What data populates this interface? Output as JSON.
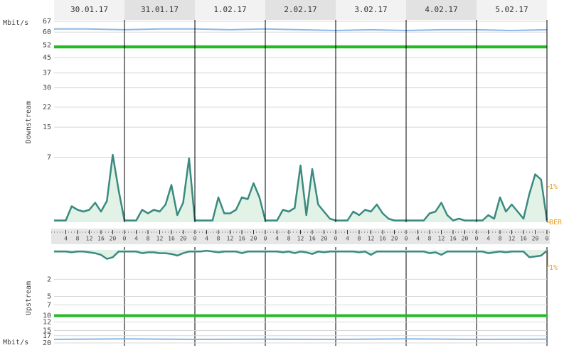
{
  "chart_data": [
    {
      "type": "line",
      "ylabel": "Downstream",
      "yunit": "Mbit/s",
      "days": [
        "30.01.17",
        "31.01.17",
        "1.02.17",
        "2.02.17",
        "3.02.17",
        "4.02.17",
        "5.02.17"
      ],
      "xlim": [
        0,
        168
      ],
      "xticks": [
        {
          "value": 4,
          "label": "4"
        },
        {
          "value": 8,
          "label": "8"
        },
        {
          "value": 12,
          "label": "12"
        },
        {
          "value": 16,
          "label": "16"
        },
        {
          "value": 20,
          "label": "20"
        },
        {
          "value": 24,
          "label": "0"
        },
        {
          "value": 28,
          "label": "4"
        },
        {
          "value": 32,
          "label": "8"
        },
        {
          "value": 36,
          "label": "12"
        },
        {
          "value": 40,
          "label": "16"
        },
        {
          "value": 44,
          "label": "20"
        },
        {
          "value": 48,
          "label": "0"
        },
        {
          "value": 52,
          "label": "4"
        },
        {
          "value": 56,
          "label": "8"
        },
        {
          "value": 60,
          "label": "12"
        },
        {
          "value": 64,
          "label": "16"
        },
        {
          "value": 68,
          "label": "20"
        },
        {
          "value": 72,
          "label": "0"
        },
        {
          "value": 76,
          "label": "4"
        },
        {
          "value": 80,
          "label": "8"
        },
        {
          "value": 84,
          "label": "12"
        },
        {
          "value": 88,
          "label": "16"
        },
        {
          "value": 92,
          "label": "20"
        },
        {
          "value": 96,
          "label": "0"
        },
        {
          "value": 100,
          "label": "4"
        },
        {
          "value": 104,
          "label": "8"
        },
        {
          "value": 108,
          "label": "12"
        },
        {
          "value": 112,
          "label": "16"
        },
        {
          "value": 116,
          "label": "20"
        },
        {
          "value": 120,
          "label": "0"
        },
        {
          "value": 124,
          "label": "4"
        },
        {
          "value": 128,
          "label": "8"
        },
        {
          "value": 132,
          "label": "12"
        },
        {
          "value": 136,
          "label": "16"
        },
        {
          "value": 140,
          "label": "20"
        },
        {
          "value": 144,
          "label": "0"
        },
        {
          "value": 148,
          "label": "4"
        },
        {
          "value": 152,
          "label": "8"
        },
        {
          "value": 156,
          "label": "12"
        },
        {
          "value": 160,
          "label": "16"
        },
        {
          "value": 164,
          "label": "20"
        },
        {
          "value": 168,
          "label": "0"
        }
      ],
      "ylim": [
        0,
        67
      ],
      "yticks": [
        67,
        60,
        52,
        45,
        37,
        30,
        22,
        15,
        7
      ],
      "yscale": "sqrt",
      "inverted": false,
      "grid": true,
      "y2lim": [
        0,
        5.66
      ],
      "y2ticks": [
        {
          "value": 0,
          "label": "BER"
        },
        {
          "value": 1,
          "label": "1%"
        }
      ],
      "series": [
        {
          "color": "#8ab8e8",
          "x": [
            0,
            12,
            24,
            36,
            48,
            60,
            72,
            84,
            96,
            108,
            120,
            132,
            144,
            156,
            168
          ],
          "values": [
            62,
            62,
            61.5,
            62,
            62,
            61.5,
            62,
            61.5,
            61,
            61.5,
            61,
            61.5,
            61.5,
            61,
            61.5
          ]
        },
        {
          "color": "#22bb22",
          "x": [
            0,
            168
          ],
          "values": [
            51,
            51
          ]
        },
        {
          "color": "#3a8a80",
          "fill": "#e2f2e6",
          "axis": "y2",
          "x": [
            0,
            2,
            4,
            6,
            8,
            10,
            12,
            14,
            16,
            18,
            20,
            22,
            24,
            26,
            28,
            30,
            32,
            34,
            36,
            38,
            40,
            42,
            44,
            46,
            48,
            50,
            52,
            54,
            56,
            58,
            60,
            62,
            64,
            66,
            68,
            70,
            72,
            74,
            76,
            78,
            80,
            82,
            84,
            86,
            88,
            90,
            92,
            94,
            96,
            98,
            100,
            102,
            104,
            106,
            108,
            110,
            112,
            114,
            116,
            118,
            120,
            122,
            124,
            126,
            128,
            130,
            132,
            134,
            136,
            138,
            140,
            142,
            144,
            146,
            148,
            150,
            152,
            154,
            156,
            158,
            160,
            162,
            164,
            166,
            168
          ],
          "values": [
            0.05,
            0.05,
            0.05,
            0.45,
            0.35,
            0.3,
            0.35,
            0.55,
            0.3,
            0.6,
            1.9,
            0.9,
            0.05,
            0.05,
            0.05,
            0.35,
            0.25,
            0.35,
            0.3,
            0.5,
            1.05,
            0.2,
            0.55,
            1.8,
            0.05,
            0.05,
            0.05,
            0.05,
            0.7,
            0.25,
            0.25,
            0.35,
            0.7,
            0.65,
            1.1,
            0.7,
            0.05,
            0.05,
            0.05,
            0.35,
            0.3,
            0.4,
            1.6,
            0.2,
            1.5,
            0.5,
            0.3,
            0.1,
            0.05,
            0.05,
            0.05,
            0.3,
            0.2,
            0.35,
            0.3,
            0.5,
            0.25,
            0.1,
            0.05,
            0.05,
            0.05,
            0.05,
            0.05,
            0.05,
            0.25,
            0.3,
            0.55,
            0.2,
            0.05,
            0.1,
            0.05,
            0.05,
            0.05,
            0.05,
            0.2,
            0.1,
            0.7,
            0.3,
            0.5,
            0.3,
            0.1,
            0.8,
            1.35,
            1.2,
            0.05
          ]
        }
      ]
    },
    {
      "type": "line",
      "ylabel": "Upstream",
      "yunit": "Mbit/s",
      "xlim": [
        0,
        168
      ],
      "ylim": [
        0,
        20
      ],
      "yticks": [
        2,
        5,
        7,
        10,
        12,
        15,
        17,
        20
      ],
      "yscale": "sqrt",
      "inverted": true,
      "grid": true,
      "y2lim": [
        0,
        5.7
      ],
      "y2ticks": [
        {
          "value": 1,
          "label": "1%"
        }
      ],
      "series": [
        {
          "color": "#8ab8e8",
          "x": [
            0,
            24,
            48,
            72,
            96,
            120,
            144,
            168
          ],
          "values": [
            18.5,
            18.3,
            18.5,
            18.4,
            18.5,
            18.3,
            18.5,
            18.4
          ]
        },
        {
          "color": "#22bb22",
          "x": [
            0,
            168
          ],
          "values": [
            10,
            10
          ]
        },
        {
          "color": "#3a8a80",
          "fill": "#e2f2e6",
          "axis": "y2",
          "x": [
            0,
            2,
            4,
            6,
            8,
            10,
            12,
            14,
            16,
            18,
            20,
            22,
            24,
            26,
            28,
            30,
            32,
            34,
            36,
            38,
            40,
            42,
            44,
            46,
            48,
            50,
            52,
            54,
            56,
            58,
            60,
            62,
            64,
            66,
            68,
            70,
            72,
            74,
            76,
            78,
            80,
            82,
            84,
            86,
            88,
            90,
            92,
            94,
            96,
            98,
            100,
            102,
            104,
            106,
            108,
            110,
            112,
            114,
            116,
            118,
            120,
            122,
            124,
            126,
            128,
            130,
            132,
            134,
            136,
            138,
            140,
            142,
            144,
            146,
            148,
            150,
            152,
            154,
            156,
            158,
            160,
            162,
            164,
            166,
            168
          ],
          "values": [
            0.1,
            0.1,
            0.1,
            0.15,
            0.1,
            0.1,
            0.15,
            0.2,
            0.3,
            0.55,
            0.45,
            0.1,
            0.1,
            0.1,
            0.1,
            0.2,
            0.15,
            0.15,
            0.2,
            0.2,
            0.25,
            0.35,
            0.2,
            0.1,
            0.1,
            0.1,
            0.05,
            0.1,
            0.15,
            0.1,
            0.1,
            0.1,
            0.2,
            0.1,
            0.1,
            0.1,
            0.1,
            0.1,
            0.1,
            0.15,
            0.1,
            0.2,
            0.1,
            0.15,
            0.25,
            0.1,
            0.15,
            0.1,
            0.1,
            0.1,
            0.1,
            0.1,
            0.15,
            0.1,
            0.3,
            0.1,
            0.1,
            0.1,
            0.1,
            0.1,
            0.1,
            0.1,
            0.1,
            0.1,
            0.2,
            0.15,
            0.3,
            0.1,
            0.1,
            0.1,
            0.1,
            0.1,
            0.1,
            0.1,
            0.2,
            0.15,
            0.1,
            0.15,
            0.1,
            0.1,
            0.1,
            0.45,
            0.4,
            0.35,
            0.05
          ]
        }
      ]
    }
  ]
}
